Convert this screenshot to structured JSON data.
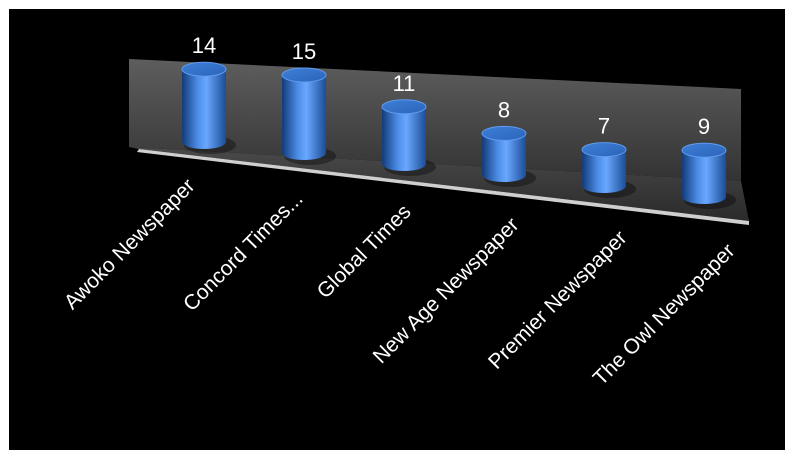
{
  "chart_data": {
    "type": "bar",
    "style": "3d-cylinder",
    "title": "",
    "xlabel": "",
    "ylabel": "",
    "categories": [
      "Awoko Newspaper",
      "Concord Times...",
      "Global Times",
      "New Age Newspaper",
      "Premier Newspaper",
      "The Owl Newspaper"
    ],
    "values": [
      14,
      15,
      11,
      8,
      7,
      9
    ],
    "data_labels": true,
    "grid": false,
    "legend": "none",
    "colors": {
      "background": "#000000",
      "bar": "#2f6fc8",
      "bar_highlight": "#6aa8ff",
      "bar_shadow": "#123b78",
      "wall": "#5a5a5a",
      "floor": "#3a3a3a",
      "text": "#ffffff"
    }
  }
}
